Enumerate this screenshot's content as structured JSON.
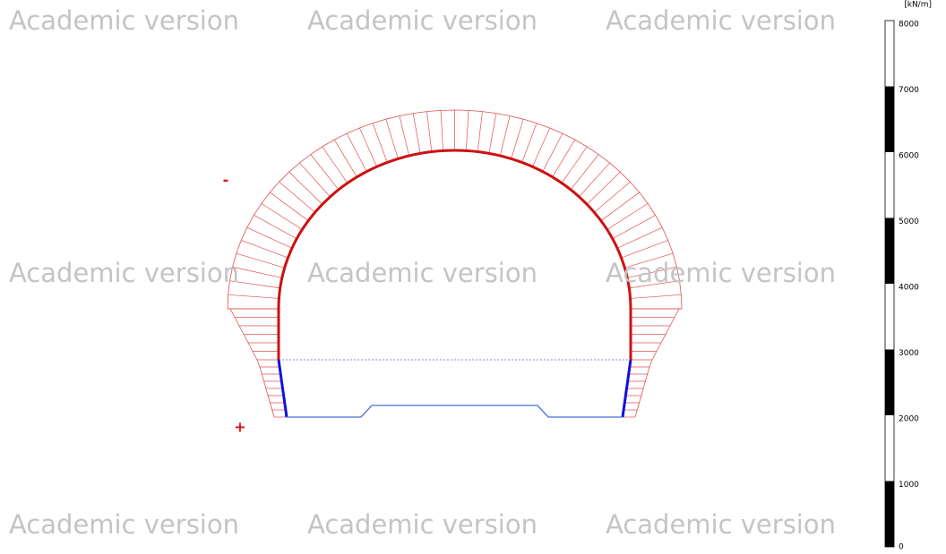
{
  "watermarks": [
    "Academic version",
    "Academic version",
    "Academic version",
    "Academic version",
    "Academic version",
    "Academic version",
    "Academic version",
    "Academic version",
    "Academic version"
  ],
  "signs": {
    "negative": "-",
    "positive": "+"
  },
  "legend": {
    "unit": "[kN/m]",
    "ticks": [
      0,
      1000,
      2000,
      3000,
      4000,
      5000,
      6000,
      7000,
      8000
    ]
  }
}
